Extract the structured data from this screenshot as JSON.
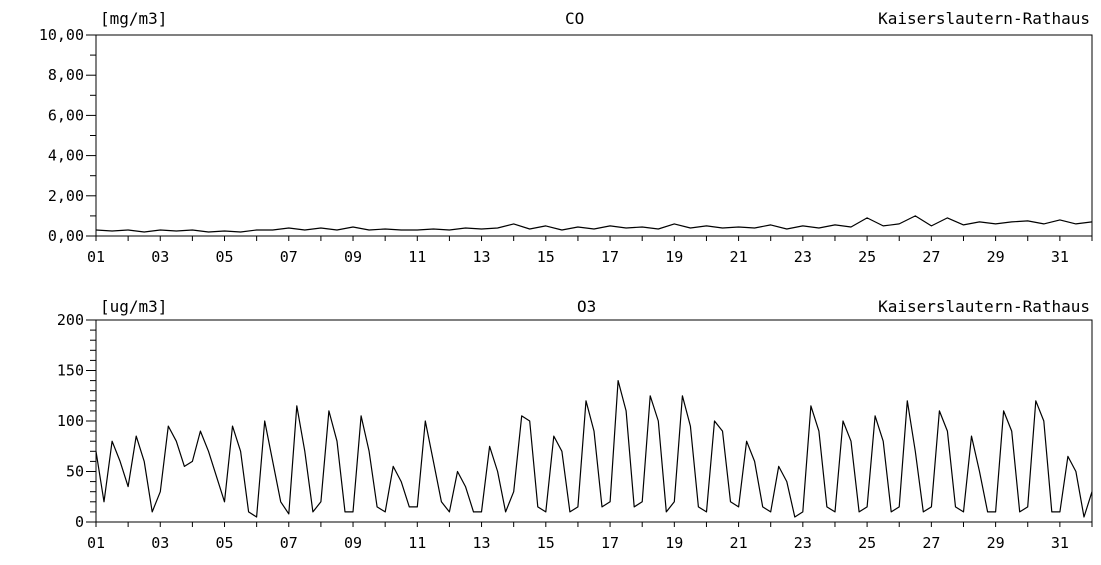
{
  "chart_data": [
    {
      "type": "line",
      "unit_label": "[mg/m3]",
      "title": "CO",
      "station": "Kaiserslautern-Rathaus",
      "ylim": [
        0,
        10
      ],
      "y_ticks": [
        "0,00",
        "2,00",
        "4,00",
        "6,00",
        "8,00",
        "10,00"
      ],
      "y_tick_values": [
        0,
        2,
        4,
        6,
        8,
        10
      ],
      "xlim": [
        1,
        32
      ],
      "x_tick_labels": [
        "01",
        "03",
        "05",
        "07",
        "09",
        "11",
        "13",
        "15",
        "17",
        "19",
        "21",
        "23",
        "25",
        "27",
        "29",
        "31"
      ],
      "x_tick_values": [
        1,
        3,
        5,
        7,
        9,
        11,
        13,
        15,
        17,
        19,
        21,
        23,
        25,
        27,
        29,
        31
      ],
      "series_color": "#000000",
      "series": [
        {
          "x": [
            1.0,
            1.5,
            2.0,
            2.5,
            3.0,
            3.5,
            4.0,
            4.5,
            5.0,
            5.5,
            6.0,
            6.5,
            7.0,
            7.5,
            8.0,
            8.5,
            9.0,
            9.5,
            10.0,
            10.5,
            11.0,
            11.5,
            12.0,
            12.5,
            13.0,
            13.5,
            14.0,
            14.5,
            15.0,
            15.5,
            16.0,
            16.5,
            17.0,
            17.5,
            18.0,
            18.5,
            19.0,
            19.5,
            20.0,
            20.5,
            21.0,
            21.5,
            22.0,
            22.5,
            23.0,
            23.5,
            24.0,
            24.5,
            25.0,
            25.5,
            26.0,
            26.5,
            27.0,
            27.5,
            28.0,
            28.5,
            29.0,
            29.5,
            30.0,
            30.5,
            31.0,
            31.5,
            32.0
          ],
          "values": [
            0.3,
            0.25,
            0.3,
            0.2,
            0.3,
            0.25,
            0.3,
            0.2,
            0.25,
            0.2,
            0.3,
            0.3,
            0.4,
            0.3,
            0.4,
            0.3,
            0.45,
            0.3,
            0.35,
            0.3,
            0.3,
            0.35,
            0.3,
            0.4,
            0.35,
            0.4,
            0.6,
            0.35,
            0.5,
            0.3,
            0.45,
            0.35,
            0.5,
            0.4,
            0.45,
            0.35,
            0.6,
            0.4,
            0.5,
            0.4,
            0.45,
            0.4,
            0.55,
            0.35,
            0.5,
            0.4,
            0.55,
            0.45,
            0.9,
            0.5,
            0.6,
            1.0,
            0.5,
            0.9,
            0.55,
            0.7,
            0.6,
            0.7,
            0.75,
            0.6,
            0.8,
            0.6,
            0.7
          ]
        }
      ]
    },
    {
      "type": "line",
      "unit_label": "[ug/m3]",
      "title": "O3",
      "station": "Kaiserslautern-Rathaus",
      "ylim": [
        0,
        200
      ],
      "y_ticks": [
        "0",
        "50",
        "100",
        "150",
        "200"
      ],
      "y_tick_values": [
        0,
        50,
        100,
        150,
        200
      ],
      "xlim": [
        1,
        32
      ],
      "x_tick_labels": [
        "01",
        "03",
        "05",
        "07",
        "09",
        "11",
        "13",
        "15",
        "17",
        "19",
        "21",
        "23",
        "25",
        "27",
        "29",
        "31"
      ],
      "x_tick_values": [
        1,
        3,
        5,
        7,
        9,
        11,
        13,
        15,
        17,
        19,
        21,
        23,
        25,
        27,
        29,
        31
      ],
      "series_color": "#000000",
      "series": [
        {
          "x": [
            1.0,
            1.25,
            1.5,
            1.75,
            2.0,
            2.25,
            2.5,
            2.75,
            3.0,
            3.25,
            3.5,
            3.75,
            4.0,
            4.25,
            4.5,
            4.75,
            5.0,
            5.25,
            5.5,
            5.75,
            6.0,
            6.25,
            6.5,
            6.75,
            7.0,
            7.25,
            7.5,
            7.75,
            8.0,
            8.25,
            8.5,
            8.75,
            9.0,
            9.25,
            9.5,
            9.75,
            10.0,
            10.25,
            10.5,
            10.75,
            11.0,
            11.25,
            11.5,
            11.75,
            12.0,
            12.25,
            12.5,
            12.75,
            13.0,
            13.25,
            13.5,
            13.75,
            14.0,
            14.25,
            14.5,
            14.75,
            15.0,
            15.25,
            15.5,
            15.75,
            16.0,
            16.25,
            16.5,
            16.75,
            17.0,
            17.25,
            17.5,
            17.75,
            18.0,
            18.25,
            18.5,
            18.75,
            19.0,
            19.25,
            19.5,
            19.75,
            20.0,
            20.25,
            20.5,
            20.75,
            21.0,
            21.25,
            21.5,
            21.75,
            22.0,
            22.25,
            22.5,
            22.75,
            23.0,
            23.25,
            23.5,
            23.75,
            24.0,
            24.25,
            24.5,
            24.75,
            25.0,
            25.25,
            25.5,
            25.75,
            26.0,
            26.25,
            26.5,
            26.75,
            27.0,
            27.25,
            27.5,
            27.75,
            28.0,
            28.25,
            28.5,
            28.75,
            29.0,
            29.25,
            29.5,
            29.75,
            30.0,
            30.25,
            30.5,
            30.75,
            31.0,
            31.25,
            31.5,
            31.75,
            32.0
          ],
          "values": [
            70,
            20,
            80,
            60,
            35,
            85,
            60,
            10,
            30,
            95,
            80,
            55,
            60,
            90,
            70,
            45,
            20,
            95,
            70,
            10,
            5,
            100,
            60,
            20,
            8,
            115,
            70,
            10,
            20,
            110,
            80,
            10,
            10,
            105,
            70,
            15,
            10,
            55,
            40,
            15,
            15,
            100,
            60,
            20,
            10,
            50,
            35,
            10,
            10,
            75,
            50,
            10,
            30,
            105,
            100,
            15,
            10,
            85,
            70,
            10,
            15,
            120,
            90,
            15,
            20,
            140,
            110,
            15,
            20,
            125,
            100,
            10,
            20,
            125,
            95,
            15,
            10,
            100,
            90,
            20,
            15,
            80,
            60,
            15,
            10,
            55,
            40,
            5,
            10,
            115,
            90,
            15,
            10,
            100,
            80,
            10,
            15,
            105,
            80,
            10,
            15,
            120,
            70,
            10,
            15,
            110,
            90,
            15,
            10,
            85,
            50,
            10,
            10,
            110,
            90,
            10,
            15,
            120,
            100,
            10,
            10,
            65,
            50,
            5,
            30
          ]
        }
      ]
    }
  ]
}
